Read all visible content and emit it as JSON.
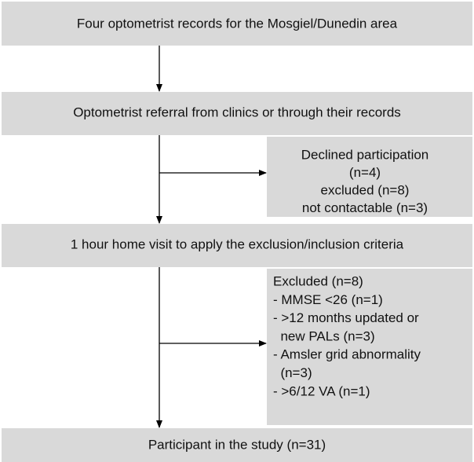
{
  "nodes": [
    {
      "label": "Four optometrist records for the Mosgiel/Dunedin area"
    },
    {
      "label": "Optometrist referral from clinics or through their records"
    },
    {
      "label": "1 hour home visit to apply the exclusion/inclusion criteria"
    },
    {
      "label": "Participant in the study (n=31)"
    }
  ],
  "side_boxes": [
    {
      "lines": [
        "Declined participation",
        "(n=4)",
        "excluded (n=8)",
        "not contactable (n=3)"
      ]
    },
    {
      "lines": [
        "Excluded (n=8)",
        "- MMSE <26 (n=1)",
        "- >12 months updated or",
        "  new PALs (n=3)",
        "- Amsler grid abnormality",
        "  (n=3)",
        "- >6/12 VA (n=1)"
      ]
    }
  ]
}
